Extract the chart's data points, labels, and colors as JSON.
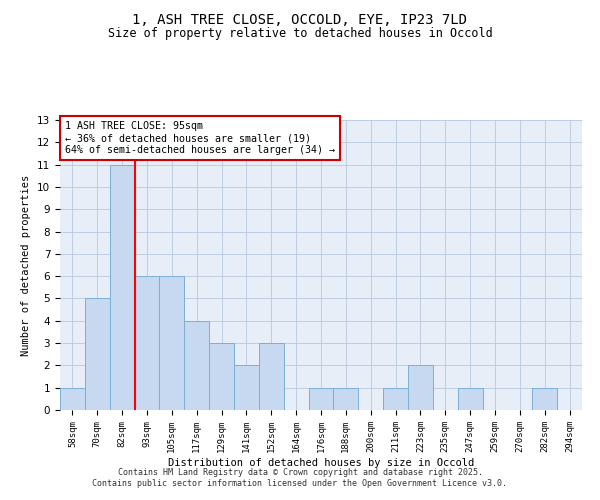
{
  "title_line1": "1, ASH TREE CLOSE, OCCOLD, EYE, IP23 7LD",
  "title_line2": "Size of property relative to detached houses in Occold",
  "xlabel": "Distribution of detached houses by size in Occold",
  "ylabel": "Number of detached properties",
  "categories": [
    "58sqm",
    "70sqm",
    "82sqm",
    "93sqm",
    "105sqm",
    "117sqm",
    "129sqm",
    "141sqm",
    "152sqm",
    "164sqm",
    "176sqm",
    "188sqm",
    "200sqm",
    "211sqm",
    "223sqm",
    "235sqm",
    "247sqm",
    "259sqm",
    "270sqm",
    "282sqm",
    "294sqm"
  ],
  "values": [
    1,
    5,
    11,
    6,
    6,
    4,
    3,
    2,
    3,
    0,
    1,
    1,
    0,
    1,
    2,
    0,
    1,
    0,
    0,
    1,
    0
  ],
  "bar_color": "#c6d9f0",
  "bar_edge_color": "#7bafd4",
  "red_line_x": 2.5,
  "ylim": [
    0,
    13
  ],
  "yticks": [
    0,
    1,
    2,
    3,
    4,
    5,
    6,
    7,
    8,
    9,
    10,
    11,
    12,
    13
  ],
  "annotation_text": "1 ASH TREE CLOSE: 95sqm\n← 36% of detached houses are smaller (19)\n64% of semi-detached houses are larger (34) →",
  "annotation_box_color": "#ffffff",
  "annotation_box_edge": "#cc0000",
  "plot_bg_color": "#e8eef8",
  "fig_bg_color": "#ffffff",
  "footer_line1": "Contains HM Land Registry data © Crown copyright and database right 2025.",
  "footer_line2": "Contains public sector information licensed under the Open Government Licence v3.0."
}
